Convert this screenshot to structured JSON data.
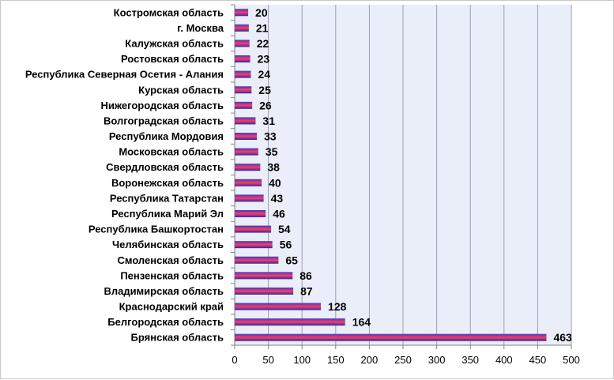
{
  "chart_data": {
    "type": "bar",
    "orientation": "horizontal",
    "categories": [
      "Костромская область",
      "г. Москва",
      "Калужская область",
      "Ростовская область",
      "Республика Северная Осетия - Алания",
      "Курская область",
      "Нижегородская область",
      "Волгоградская область",
      "Республика Мордовия",
      "Московская область",
      "Свердловская область",
      "Воронежская область",
      "Республика Татарстан",
      "Республика Марий Эл",
      "Республика Башкортостан",
      "Челябинская область",
      "Смоленская область",
      "Пензенская область",
      "Владимирская область",
      "Краснодарский край",
      "Белгородская область",
      "Брянская область"
    ],
    "values": [
      20,
      21,
      22,
      23,
      24,
      25,
      26,
      31,
      33,
      35,
      38,
      40,
      43,
      46,
      54,
      56,
      65,
      86,
      87,
      128,
      164,
      463
    ],
    "xlim": [
      0,
      500
    ],
    "xticks": [
      0,
      50,
      100,
      150,
      200,
      250,
      300,
      350,
      400,
      450,
      500
    ],
    "grid": "vertical",
    "legend": "none",
    "colors": {
      "bar_top": "#3a3ad0",
      "bar_mid": "#ff3b5c",
      "bar_bottom": "#2a2ab0",
      "plot_bg": "#eaeef8",
      "grid": "#9aa0b4"
    }
  }
}
